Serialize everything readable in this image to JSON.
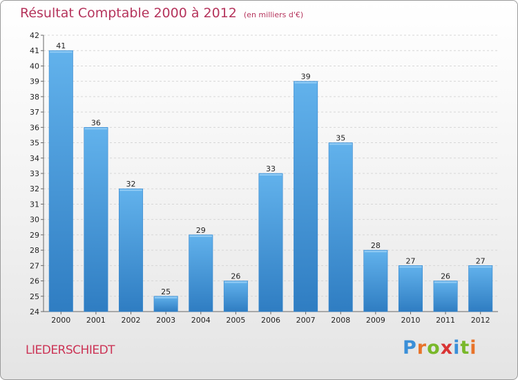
{
  "header": {
    "title": "Résultat Comptable 2000 à 2012",
    "subtitle": "(en milliers d'€)"
  },
  "footer": {
    "commune": "LIEDERSCHIEDT",
    "logo_letters": [
      "P",
      "r",
      "o",
      "x",
      "i",
      "t",
      "i"
    ],
    "logo_colors": [
      "#3a8fd8",
      "#e8732a",
      "#79b82a",
      "#d93434",
      "#3a8fd8",
      "#79b82a",
      "#e8732a"
    ]
  },
  "chart_data": {
    "type": "bar",
    "categories": [
      "2000",
      "2001",
      "2002",
      "2003",
      "2004",
      "2005",
      "2006",
      "2007",
      "2008",
      "2009",
      "2010",
      "2011",
      "2012"
    ],
    "values": [
      41,
      36,
      32,
      25,
      29,
      26,
      33,
      39,
      35,
      28,
      27,
      26,
      27
    ],
    "title": "Résultat Comptable 2000 à 2012",
    "subtitle": "(en milliers d'€)",
    "ylim": [
      24,
      42
    ],
    "yticks": [
      24,
      25,
      26,
      27,
      28,
      29,
      30,
      31,
      32,
      33,
      34,
      35,
      36,
      37,
      38,
      39,
      40,
      41,
      42
    ],
    "grid": true,
    "bar_color": "#4a9de0",
    "bar_color_light": "#62b2ec",
    "bar_color_dark": "#2f7dc2"
  }
}
